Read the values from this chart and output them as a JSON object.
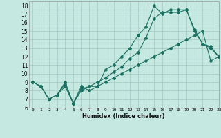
{
  "xlabel": "Humidex (Indice chaleur)",
  "bg_color": "#c5e8e0",
  "line_color": "#1a7060",
  "grid_color": "#a8cec8",
  "xlim": [
    -0.5,
    23
  ],
  "ylim": [
    6,
    18.5
  ],
  "xticks": [
    0,
    1,
    2,
    3,
    4,
    5,
    6,
    7,
    8,
    9,
    10,
    11,
    12,
    13,
    14,
    15,
    16,
    17,
    18,
    19,
    20,
    21,
    22,
    23
  ],
  "yticks": [
    6,
    7,
    8,
    9,
    10,
    11,
    12,
    13,
    14,
    15,
    16,
    17,
    18
  ],
  "line1_x": [
    0,
    1,
    2,
    3,
    4,
    5,
    6,
    7,
    8,
    9,
    10,
    11,
    12,
    13,
    14,
    15,
    16,
    17,
    18,
    19,
    20,
    21,
    22,
    23
  ],
  "line1_y": [
    9.0,
    8.5,
    7.0,
    7.5,
    9.0,
    6.5,
    8.5,
    8.0,
    8.5,
    10.5,
    11.0,
    12.0,
    13.0,
    14.5,
    15.5,
    18.0,
    17.0,
    17.5,
    17.5,
    17.5,
    15.0,
    13.5,
    13.0,
    12.0
  ],
  "line2_x": [
    0,
    1,
    2,
    3,
    4,
    5,
    6,
    7,
    8,
    9,
    10,
    11,
    12,
    13,
    14,
    15,
    16,
    17,
    18,
    19,
    20,
    21,
    22,
    23
  ],
  "line2_y": [
    9.0,
    8.5,
    7.0,
    7.5,
    8.8,
    6.5,
    8.2,
    8.5,
    9.0,
    9.5,
    10.2,
    10.8,
    11.8,
    12.5,
    14.2,
    16.5,
    17.2,
    17.2,
    17.2,
    17.5,
    15.2,
    13.5,
    13.2,
    12.0
  ],
  "line3_x": [
    0,
    1,
    2,
    3,
    4,
    5,
    6,
    7,
    8,
    9,
    10,
    11,
    12,
    13,
    14,
    15,
    16,
    17,
    18,
    19,
    20,
    21,
    22,
    23
  ],
  "line3_y": [
    9.0,
    8.5,
    7.0,
    7.5,
    8.5,
    6.5,
    8.0,
    8.5,
    8.5,
    9.0,
    9.5,
    10.0,
    10.5,
    11.0,
    11.5,
    12.0,
    12.5,
    13.0,
    13.5,
    14.0,
    14.5,
    15.0,
    11.5,
    12.0
  ]
}
